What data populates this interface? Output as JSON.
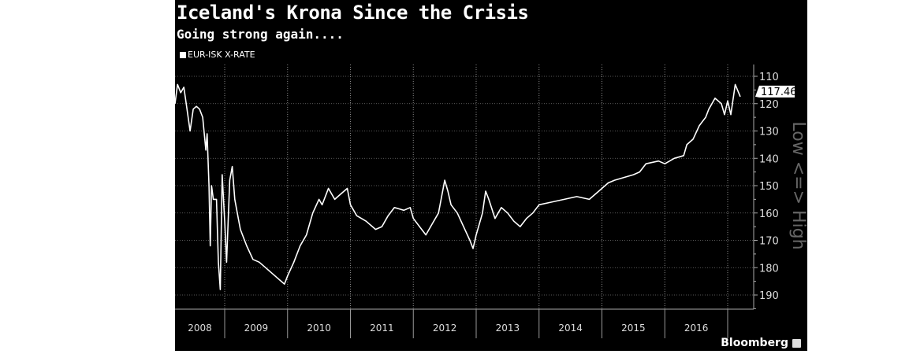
{
  "chart_data": {
    "type": "line",
    "title": "Iceland's Krona Since the Crisis",
    "subtitle": "Going strong again....",
    "legend": [
      "EUR-ISK X-RATE"
    ],
    "legend_placement": "top-left",
    "ylabel": "Low <=> High",
    "ylim": [
      110,
      193
    ],
    "y_inverted": true,
    "y_ticks": [
      "110",
      "120",
      "130",
      "140",
      "150",
      "160",
      "170",
      "180",
      "190"
    ],
    "x_ticks": [
      "2008",
      "2009",
      "2010",
      "2011",
      "2012",
      "2013",
      "2014",
      "2015",
      "2016"
    ],
    "last_value_label": "117.46",
    "grid": true,
    "series": [
      {
        "name": "EUR-ISK X-RATE",
        "x": [
          2008.21,
          2008.25,
          2008.3,
          2008.35,
          2008.4,
          2008.45,
          2008.5,
          2008.55,
          2008.6,
          2008.65,
          2008.7,
          2008.72,
          2008.75,
          2008.77,
          2008.79,
          2008.82,
          2008.87,
          2008.9,
          2008.93,
          2008.96,
          2009.0,
          2009.03,
          2009.08,
          2009.12,
          2009.16,
          2009.2,
          2009.25,
          2009.35,
          2009.45,
          2009.55,
          2009.7,
          2009.85,
          2009.95,
          2010.0,
          2010.1,
          2010.2,
          2010.3,
          2010.4,
          2010.5,
          2010.55,
          2010.65,
          2010.75,
          2010.85,
          2010.95,
          2011.0,
          2011.1,
          2011.25,
          2011.4,
          2011.5,
          2011.6,
          2011.7,
          2011.85,
          2011.95,
          2012.0,
          2012.1,
          2012.2,
          2012.3,
          2012.4,
          2012.5,
          2012.55,
          2012.6,
          2012.7,
          2012.8,
          2012.9,
          2012.95,
          2013.0,
          2013.1,
          2013.15,
          2013.2,
          2013.3,
          2013.4,
          2013.5,
          2013.6,
          2013.7,
          2013.8,
          2013.9,
          2014.0,
          2014.2,
          2014.4,
          2014.6,
          2014.8,
          2014.95,
          2015.1,
          2015.2,
          2015.35,
          2015.5,
          2015.6,
          2015.7,
          2015.9,
          2016.0,
          2016.15,
          2016.3,
          2016.35,
          2016.45,
          2016.55,
          2016.65,
          2016.7,
          2016.8,
          2016.9,
          2016.95,
          2017.0,
          2017.05,
          2017.12,
          2017.2
        ],
        "values": [
          120,
          113,
          116,
          114,
          122,
          130,
          122,
          121,
          122,
          125,
          137,
          131,
          150,
          172,
          150,
          155,
          155,
          178,
          188,
          146,
          163,
          178,
          148,
          143,
          155,
          160,
          166,
          172,
          177,
          178,
          181,
          184,
          186,
          183,
          178,
          172,
          168,
          160,
          155,
          157,
          151,
          155,
          153,
          151,
          157,
          161,
          163,
          166,
          165,
          161,
          158,
          159,
          158,
          162,
          165,
          168,
          164,
          160,
          148,
          152,
          157,
          160,
          165,
          170,
          173,
          168,
          160,
          152,
          155,
          162,
          158,
          160,
          163,
          165,
          162,
          160,
          157,
          156,
          155,
          154,
          155,
          152,
          149,
          148,
          147,
          146,
          145,
          142,
          141,
          142,
          140,
          139,
          135,
          133,
          128,
          125,
          122,
          118,
          120,
          124,
          119,
          124,
          113,
          117.46
        ]
      }
    ]
  },
  "brand": "Bloomberg"
}
